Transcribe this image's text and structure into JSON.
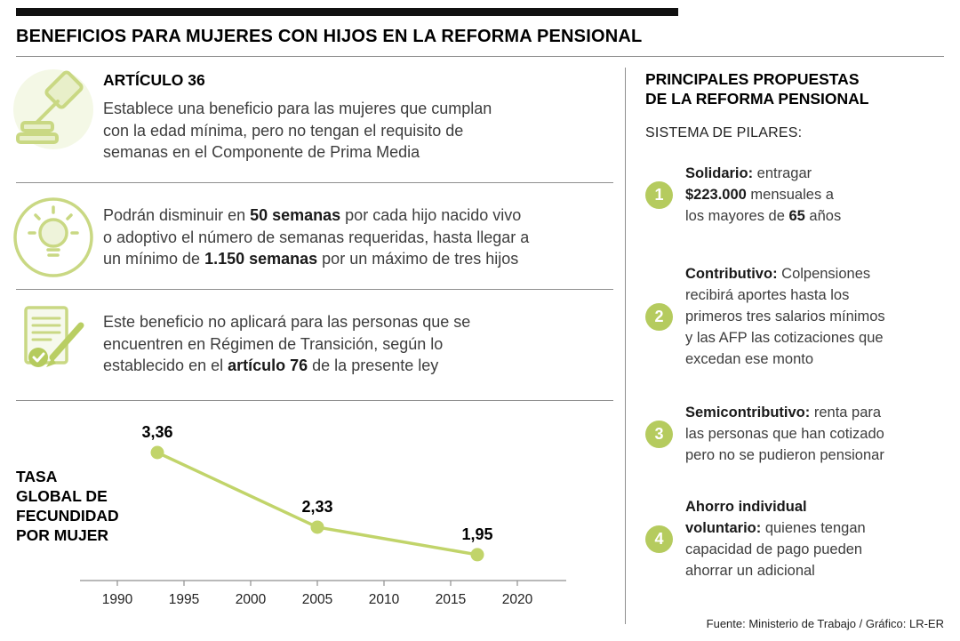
{
  "accent_color": "#b5cb5e",
  "title": "BENEFICIOS PARA MUJERES CON HIJOS EN LA REFORMA PENSIONAL",
  "left": {
    "sections": [
      {
        "icon": "gavel-icon",
        "heading": "ARTÍCULO 36",
        "segments": [
          {
            "text": "Establece una beneficio para las mujeres que cumplan",
            "bold": false
          },
          {
            "text": "con la edad mínima, pero no tengan el requisito de",
            "bold": false
          },
          {
            "text": "semanas en el Componente de Prima Media",
            "bold": false
          }
        ]
      },
      {
        "icon": "lightbulb-icon",
        "heading": "",
        "segments": [
          {
            "text": "Podrán disminuir en ",
            "bold": false
          },
          {
            "text": "50 semanas",
            "bold": true
          },
          {
            "text": " por cada hijo nacido vivo",
            "bold": false
          },
          {
            "text": "o adoptivo el número de semanas requeridas, hasta llegar a",
            "bold": false
          },
          {
            "text": "un mínimo de ",
            "bold": false
          },
          {
            "text": "1.150 semanas",
            "bold": true
          },
          {
            "text": " por un máximo de tres hijos",
            "bold": false
          }
        ]
      },
      {
        "icon": "document-pencil-icon",
        "heading": "",
        "segments": [
          {
            "text": "Este beneficio no aplicará para las personas que se",
            "bold": false
          },
          {
            "text": "encuentren en Régimen de Transición, según lo",
            "bold": false
          },
          {
            "text": "establecido en el ",
            "bold": false
          },
          {
            "text": "artículo 76",
            "bold": true
          },
          {
            "text": " de la presente ley",
            "bold": false
          }
        ]
      }
    ]
  },
  "right": {
    "heading_line1": "PRINCIPALES PROPUESTAS",
    "heading_line2": "DE LA REFORMA PENSIONAL",
    "subheading": "SISTEMA DE PILARES:",
    "pillars": [
      {
        "number": "1",
        "segments": [
          {
            "text": "Solidario:",
            "bold": true
          },
          {
            "text": " entragar",
            "bold": false
          },
          {
            "text": "$223.000",
            "bold": true
          },
          {
            "text": " mensuales a",
            "bold": false
          },
          {
            "text": "los mayores de ",
            "bold": false
          },
          {
            "text": "65",
            "bold": true
          },
          {
            "text": " años",
            "bold": false
          }
        ]
      },
      {
        "number": "2",
        "segments": [
          {
            "text": "Contributivo:",
            "bold": true
          },
          {
            "text": " Colpensiones",
            "bold": false
          },
          {
            "text": "recibirá aportes hasta los",
            "bold": false
          },
          {
            "text": "primeros tres salarios mínimos",
            "bold": false
          },
          {
            "text": "y las AFP las cotizaciones que",
            "bold": false
          },
          {
            "text": "excedan ese monto",
            "bold": false
          }
        ]
      },
      {
        "number": "3",
        "segments": [
          {
            "text": "Semicontributivo:",
            "bold": true
          },
          {
            "text": " renta para",
            "bold": false
          },
          {
            "text": "las personas que han cotizado",
            "bold": false
          },
          {
            "text": "pero no se pudieron pensionar",
            "bold": false
          }
        ]
      },
      {
        "number": "4",
        "segments": [
          {
            "text": "Ahorro individual",
            "bold": true
          },
          {
            "text": "voluntario:",
            "bold": true
          },
          {
            "text": " quienes tengan",
            "bold": false
          },
          {
            "text": "capacidad de pago pueden",
            "bold": false
          },
          {
            "text": "ahorrar un adicional",
            "bold": false
          }
        ]
      }
    ]
  },
  "chart_data": {
    "type": "line",
    "title": "TASA GLOBAL DE FECUNDIDAD POR MUJER",
    "title_lines": [
      "TASA",
      "GLOBAL DE",
      "FECUNDIDAD",
      "POR MUJER"
    ],
    "x": [
      1993,
      2005,
      2017
    ],
    "values": [
      3.36,
      2.33,
      1.95
    ],
    "point_labels": [
      "3,36",
      "2,33",
      "1,95"
    ],
    "x_ticks": [
      "1990",
      "1995",
      "2000",
      "2005",
      "2010",
      "2015",
      "2020"
    ],
    "x_range": [
      1987,
      2023
    ],
    "y_implied_range": [
      1.6,
      3.8
    ],
    "line_color": "#c1d46a",
    "grid": false,
    "legend": false
  },
  "footer": "Fuente: Ministerio de Trabajo / Gráfico: LR-ER"
}
